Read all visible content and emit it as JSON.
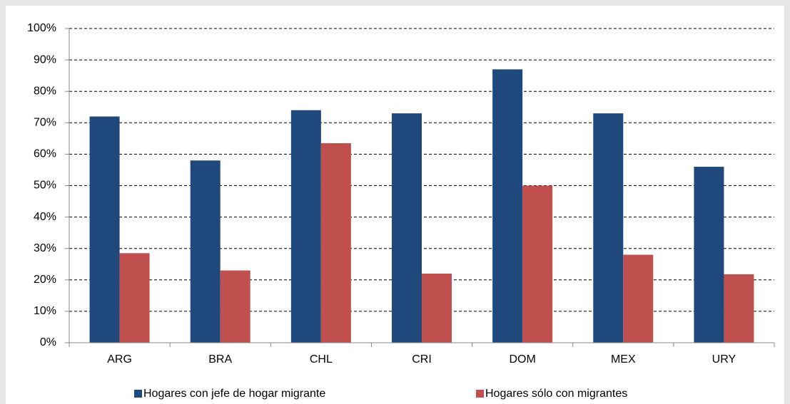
{
  "chart_data": {
    "type": "bar",
    "categories": [
      "ARG",
      "BRA",
      "CHL",
      "CRI",
      "DOM",
      "MEX",
      "URY"
    ],
    "series": [
      {
        "name": "Hogares con jefe de hogar migrante",
        "color": "#1f497d",
        "values": [
          72,
          58,
          74,
          73,
          87,
          73,
          56
        ]
      },
      {
        "name": "Hogares sólo con migrantes",
        "color": "#c0504d",
        "values": [
          28.5,
          23,
          63.5,
          22,
          50,
          28,
          21.8
        ]
      }
    ],
    "ylim": [
      0,
      100
    ],
    "yticks": [
      {
        "value": 0,
        "label": "0%"
      },
      {
        "value": 10,
        "label": "10%"
      },
      {
        "value": 20,
        "label": "20%"
      },
      {
        "value": 30,
        "label": "30%"
      },
      {
        "value": 40,
        "label": "40%"
      },
      {
        "value": 50,
        "label": "50%"
      },
      {
        "value": 60,
        "label": "60%"
      },
      {
        "value": 70,
        "label": "70%"
      },
      {
        "value": 80,
        "label": "80%"
      },
      {
        "value": 90,
        "label": "90%"
      },
      {
        "value": 100,
        "label": "100%"
      }
    ],
    "grid": true,
    "legend": "bottom"
  }
}
